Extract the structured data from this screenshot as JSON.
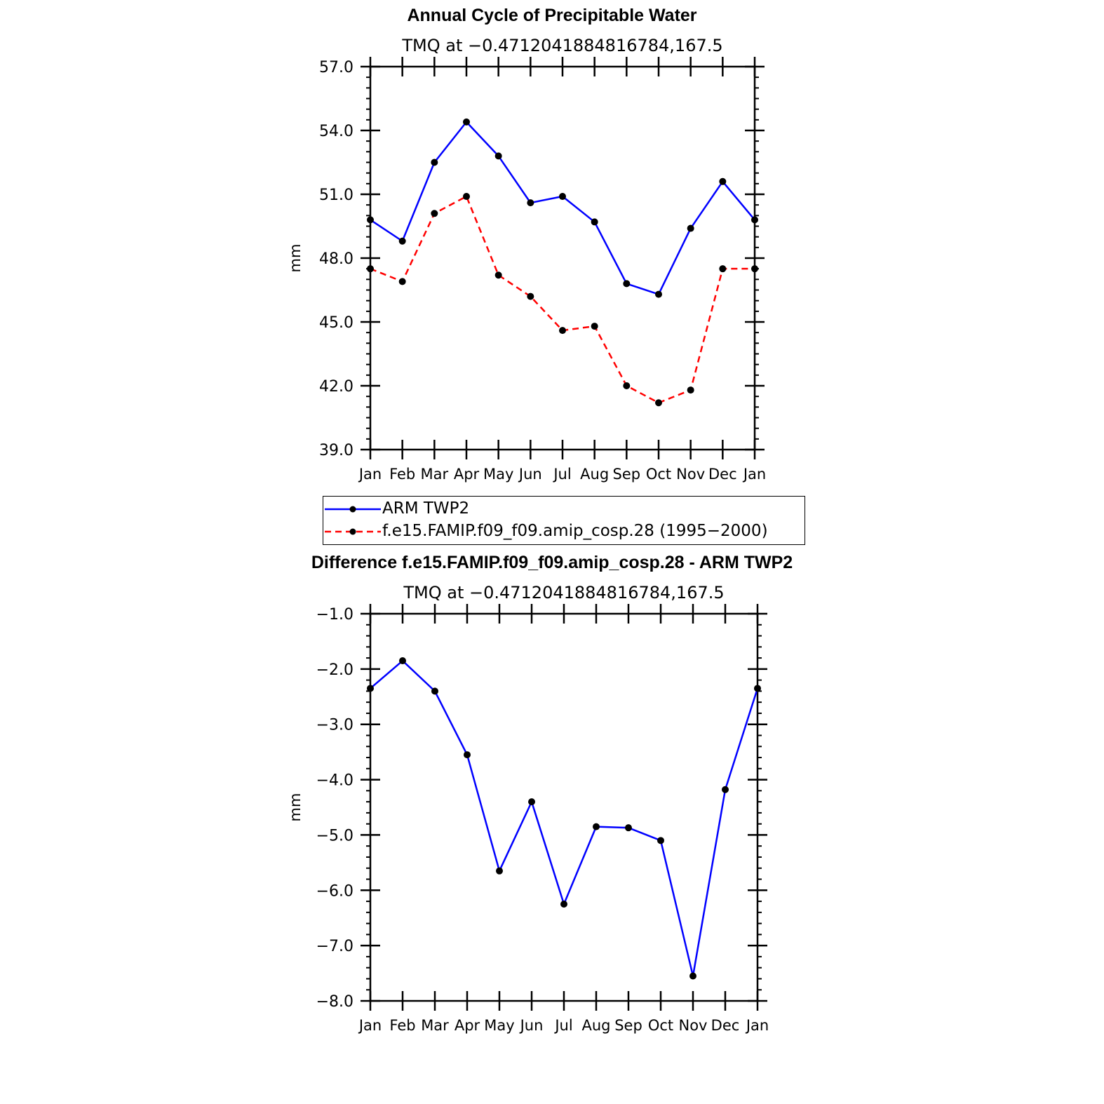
{
  "chart_data": [
    {
      "type": "line",
      "title": "Annual Cycle of Precipitable Water",
      "subtitle": "TMQ at −0.4712041884816784,167.5",
      "ylabel": "mm",
      "ylim": [
        39.0,
        57.0
      ],
      "yticks": [
        "39.0",
        "42.0",
        "45.0",
        "48.0",
        "51.0",
        "54.0",
        "57.0"
      ],
      "categories": [
        "Jan",
        "Feb",
        "Mar",
        "Apr",
        "May",
        "Jun",
        "Jul",
        "Aug",
        "Sep",
        "Oct",
        "Nov",
        "Dec",
        "Jan"
      ],
      "series": [
        {
          "name": "ARM TWP2",
          "color": "#0000ff",
          "style": "solid",
          "values": [
            49.8,
            48.8,
            52.5,
            54.4,
            52.8,
            50.6,
            50.9,
            49.7,
            46.8,
            46.3,
            49.4,
            51.6,
            49.8
          ]
        },
        {
          "name": "f.e15.FAMIP.f09_f09.amip_cosp.28 (1995−2000)",
          "color": "#ff0000",
          "style": "dashed",
          "values": [
            47.5,
            46.9,
            50.1,
            50.9,
            47.2,
            46.2,
            44.6,
            44.8,
            42.0,
            41.2,
            41.8,
            47.5,
            47.5
          ]
        }
      ],
      "legend": "below"
    },
    {
      "type": "line",
      "title": "Difference f.e15.FAMIP.f09_f09.amip_cosp.28 - ARM TWP2",
      "subtitle": "TMQ at −0.4712041884816784,167.5",
      "ylabel": "mm",
      "ylim": [
        -8.0,
        -1.0
      ],
      "yticks": [
        "−8.0",
        "−7.0",
        "−6.0",
        "−5.0",
        "−4.0",
        "−3.0",
        "−2.0",
        "−1.0"
      ],
      "categories": [
        "Jan",
        "Feb",
        "Mar",
        "Apr",
        "May",
        "Jun",
        "Jul",
        "Aug",
        "Sep",
        "Oct",
        "Nov",
        "Dec",
        "Jan"
      ],
      "series": [
        {
          "color": "#0000ff",
          "style": "solid",
          "values": [
            -2.35,
            -1.85,
            -2.4,
            -3.55,
            -5.65,
            -4.4,
            -6.25,
            -4.85,
            -4.87,
            -5.1,
            -7.55,
            -4.18,
            -2.35
          ]
        }
      ]
    }
  ]
}
